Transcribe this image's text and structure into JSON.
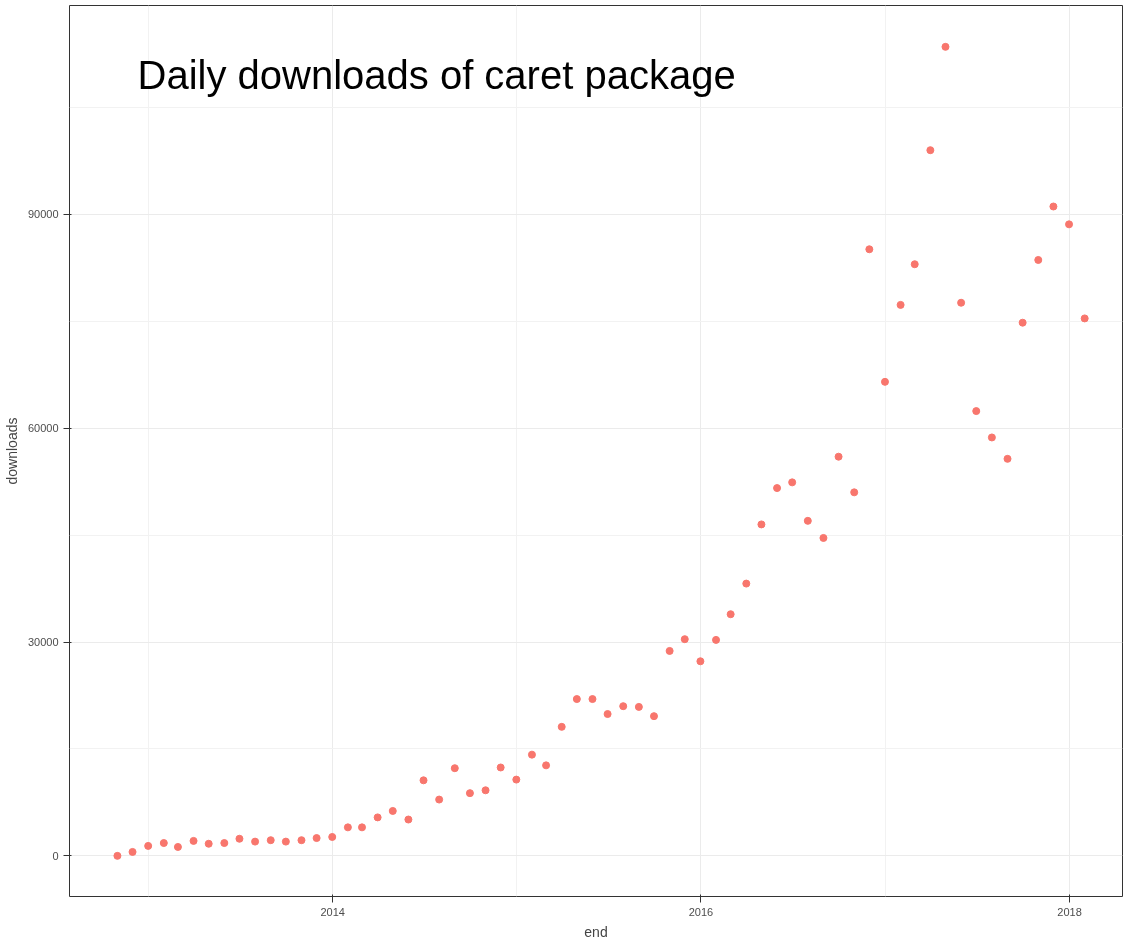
{
  "chart_data": {
    "type": "scatter",
    "title": "Daily downloads of caret package",
    "xlabel": "end",
    "ylabel": "downloads",
    "x": [
      "2012-10-31",
      "2012-11-30",
      "2012-12-31",
      "2013-01-31",
      "2013-02-28",
      "2013-03-31",
      "2013-04-30",
      "2013-05-31",
      "2013-06-30",
      "2013-07-31",
      "2013-08-31",
      "2013-09-30",
      "2013-10-31",
      "2013-11-30",
      "2013-12-31",
      "2014-01-31",
      "2014-02-28",
      "2014-03-31",
      "2014-04-30",
      "2014-05-31",
      "2014-06-30",
      "2014-07-31",
      "2014-08-31",
      "2014-09-30",
      "2014-10-31",
      "2014-11-30",
      "2014-12-31",
      "2015-01-31",
      "2015-02-28",
      "2015-03-31",
      "2015-04-30",
      "2015-05-31",
      "2015-06-30",
      "2015-07-31",
      "2015-08-31",
      "2015-09-30",
      "2015-10-31",
      "2015-11-30",
      "2015-12-31",
      "2016-01-31",
      "2016-02-29",
      "2016-03-31",
      "2016-04-30",
      "2016-05-31",
      "2016-06-30",
      "2016-07-31",
      "2016-08-31",
      "2016-09-30",
      "2016-10-31",
      "2016-11-30",
      "2016-12-31",
      "2017-01-31",
      "2017-02-28",
      "2017-03-31",
      "2017-04-30",
      "2017-05-31",
      "2017-06-30",
      "2017-07-31",
      "2017-08-31",
      "2017-09-30",
      "2017-10-31",
      "2017-11-30",
      "2017-12-31",
      "2018-01-31"
    ],
    "series": [
      {
        "color": "#f8766d",
        "values": [
          0,
          550,
          1400,
          1800,
          1250,
          2100,
          1700,
          1800,
          2400,
          2000,
          2200,
          2000,
          2200,
          2500,
          2650,
          4000,
          4000,
          5400,
          6300,
          5100,
          10600,
          7900,
          12300,
          8800,
          9200,
          12400,
          10700,
          14200,
          12700,
          18100,
          22000,
          22000,
          19900,
          21000,
          20900,
          19600,
          28750,
          30400,
          27300,
          30300,
          33900,
          38200,
          46500,
          51600,
          52400,
          47000,
          44600,
          56000,
          51000,
          85100,
          66500,
          77300,
          83000,
          99000,
          113500,
          77600,
          62400,
          58700,
          55700,
          74800,
          83600,
          91100,
          88600,
          75400
        ]
      }
    ],
    "xlim": [
      "2012-07-28",
      "2018-04-16"
    ],
    "xticks": [
      {
        "value": "2014-01-01",
        "label": "2014"
      },
      {
        "value": "2016-01-01",
        "label": "2016"
      },
      {
        "value": "2018-01-01",
        "label": "2018"
      }
    ],
    "ylim": [
      -5700,
      119300
    ],
    "yticks": [
      0,
      30000,
      60000,
      90000
    ],
    "grid": true,
    "marker": "circle"
  }
}
